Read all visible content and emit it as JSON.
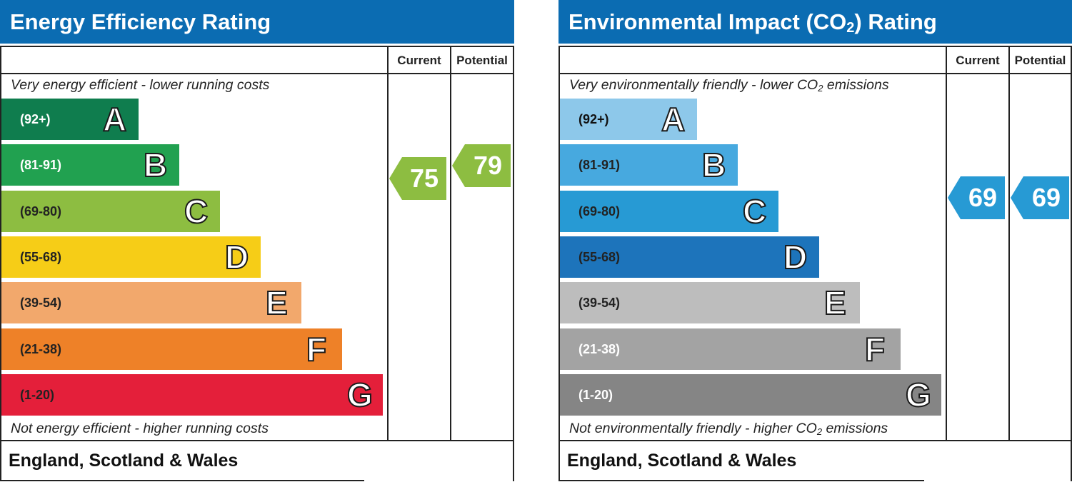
{
  "chart_data": [
    {
      "type": "bar",
      "title": "Energy Efficiency Rating",
      "columns": [
        "Current",
        "Potential"
      ],
      "top_note": "Very energy efficient - lower running costs",
      "bottom_note": "Not energy efficient - higher running costs",
      "footer": "England, Scotland & Wales",
      "categories": [
        "A",
        "B",
        "C",
        "D",
        "E",
        "F",
        "G"
      ],
      "ranges": [
        "(92+)",
        "(81-91)",
        "(69-80)",
        "(55-68)",
        "(39-54)",
        "(21-38)",
        "(1-20)"
      ],
      "colors": [
        "#0f7d4e",
        "#21a150",
        "#8dbd41",
        "#f6cd17",
        "#f2a86c",
        "#ee8128",
        "#e41f3a"
      ],
      "range_text_colors": [
        "#ffffff",
        "#ffffff",
        "#222222",
        "#222222",
        "#222222",
        "#222222",
        "#222222"
      ],
      "current": 75,
      "potential": 79,
      "current_color": "#8dbd41",
      "potential_color": "#8dbd41"
    },
    {
      "type": "bar",
      "title_prefix": "Environmental Impact (CO",
      "title_sub": "2",
      "title_suffix": ") Rating",
      "columns": [
        "Current",
        "Potential"
      ],
      "top_note_prefix": "Very environmentally friendly - lower CO",
      "top_note_sub": "2",
      "top_note_suffix": " emissions",
      "bottom_note_prefix": "Not environmentally friendly - higher CO",
      "bottom_note_sub": "2",
      "bottom_note_suffix": " emissions",
      "footer": "England, Scotland & Wales",
      "categories": [
        "A",
        "B",
        "C",
        "D",
        "E",
        "F",
        "G"
      ],
      "ranges": [
        "(92+)",
        "(81-91)",
        "(69-80)",
        "(55-68)",
        "(39-54)",
        "(21-38)",
        "(1-20)"
      ],
      "colors": [
        "#8dc8ea",
        "#47a9df",
        "#279ad4",
        "#1d74bb",
        "#bdbdbd",
        "#a3a3a3",
        "#858585"
      ],
      "range_text_colors": [
        "#111111",
        "#222222",
        "#222222",
        "#222222",
        "#222222",
        "#ffffff",
        "#ffffff"
      ],
      "current": 69,
      "potential": 69,
      "current_color": "#279ad4",
      "potential_color": "#279ad4"
    }
  ]
}
